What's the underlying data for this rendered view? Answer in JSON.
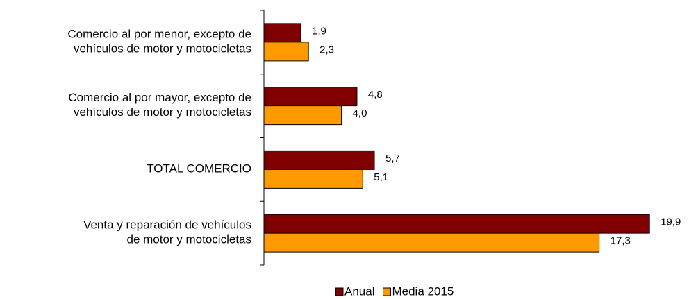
{
  "chart_data": {
    "type": "bar",
    "orientation": "horizontal",
    "categories": [
      "Comercio al por menor, excepto de\nvehículos de motor y motocicletas",
      "Comercio al por mayor, excepto de\nvehículos de motor y motocicletas",
      "TOTAL COMERCIO",
      "Venta y reparación de vehículos\nde motor y motocicletas"
    ],
    "series": [
      {
        "name": "Anual",
        "color": "#800000",
        "values": [
          1.9,
          4.8,
          5.7,
          19.9
        ],
        "value_labels": [
          "1,9",
          "4,8",
          "5,7",
          "19,9"
        ]
      },
      {
        "name": "Media 2015",
        "color": "#ff9900",
        "values": [
          2.3,
          4.0,
          5.1,
          17.3
        ],
        "value_labels": [
          "2,3",
          "4,0",
          "5,1",
          "17,3"
        ]
      }
    ],
    "xlim": [
      0,
      20
    ],
    "legend": "bottom"
  }
}
